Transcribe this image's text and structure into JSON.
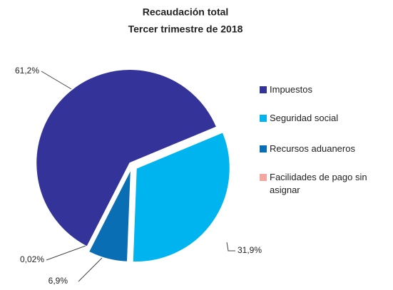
{
  "chart_data": {
    "type": "pie",
    "title": "Recaudación total",
    "subtitle": "Tercer trimestre de 2018",
    "categories": [
      "Impuestos",
      "Seguridad social",
      "Recursos aduaneros",
      "Facilidades de pago sin asignar"
    ],
    "values": [
      61.2,
      31.9,
      6.9,
      0.02
    ],
    "value_labels": [
      "61,2%",
      "31,9%",
      "6,9%",
      "0,02%"
    ],
    "colors": [
      "#333399",
      "#00b4f0",
      "#0a6eb4",
      "#f4a6a0"
    ],
    "legend": "right"
  }
}
